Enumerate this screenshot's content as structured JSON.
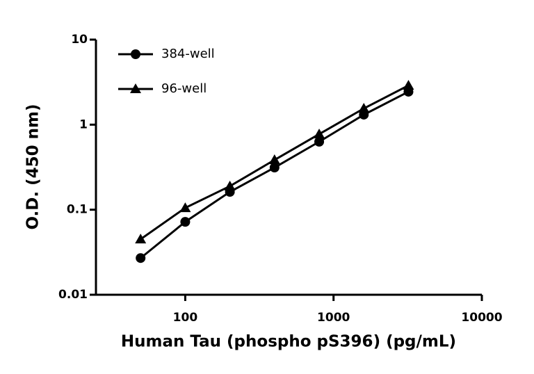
{
  "chart_data": {
    "type": "line",
    "x_label": "Human Tau (phospho pS396) (pg/mL)",
    "y_label": "O.D. (450 nm)",
    "x": [
      50,
      100,
      200,
      400,
      800,
      1600,
      3200
    ],
    "series": [
      {
        "name": "384-well",
        "color": "#000000",
        "marker": "circle",
        "values": [
          0.027,
          0.072,
          0.162,
          0.313,
          0.63,
          1.31,
          2.44
        ]
      },
      {
        "name": "96-well",
        "color": "#000000",
        "marker": "triangle",
        "values": [
          0.045,
          0.105,
          0.189,
          0.385,
          0.774,
          1.55,
          2.89
        ]
      }
    ],
    "xlim": [
      25,
      10000
    ],
    "xticks": [
      100,
      1000,
      10000
    ],
    "xscale": "log",
    "ylim": [
      0.01,
      10
    ],
    "yticks": [
      0.01,
      0.1,
      1,
      10
    ],
    "yscale": "log",
    "legend": "top-left",
    "grid": false
  }
}
